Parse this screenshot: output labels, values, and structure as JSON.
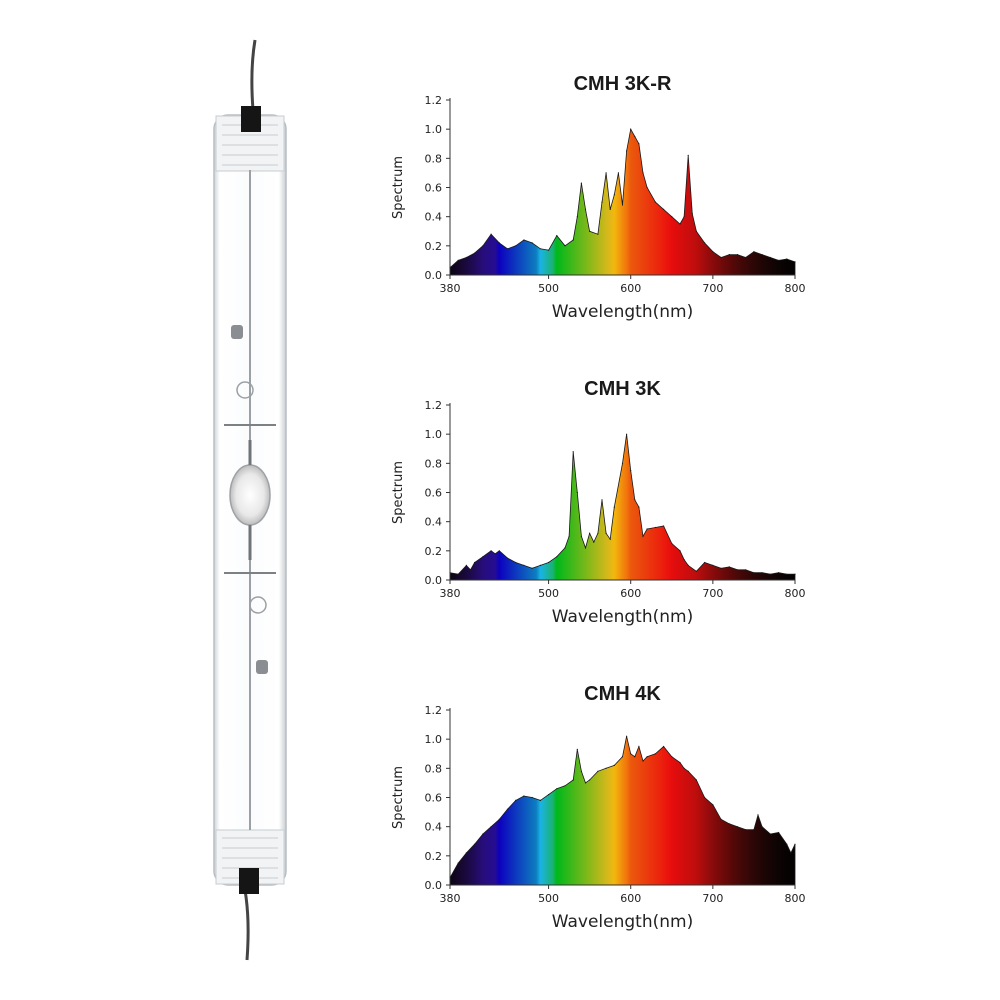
{
  "chart_data": [
    {
      "type": "area",
      "title": "CMH  3K-R",
      "xlabel": "Wavelength(nm)",
      "ylabel": "Spectrum",
      "xlim": [
        380,
        800
      ],
      "ylim": [
        0,
        1.2
      ],
      "xticks": [
        "380",
        "500",
        "600",
        "700",
        "800"
      ],
      "yticks": [
        "0.0",
        "0.2",
        "0.4",
        "0.6",
        "0.8",
        "1.0",
        "1.2"
      ],
      "x": [
        380,
        390,
        400,
        410,
        420,
        430,
        440,
        450,
        460,
        470,
        480,
        490,
        500,
        510,
        520,
        530,
        535,
        540,
        545,
        550,
        560,
        565,
        570,
        575,
        580,
        585,
        590,
        595,
        600,
        605,
        610,
        615,
        620,
        630,
        640,
        650,
        660,
        665,
        670,
        675,
        680,
        690,
        700,
        710,
        720,
        730,
        740,
        750,
        760,
        770,
        780,
        790,
        800
      ],
      "values": [
        0.05,
        0.1,
        0.12,
        0.15,
        0.2,
        0.28,
        0.22,
        0.18,
        0.2,
        0.24,
        0.22,
        0.18,
        0.17,
        0.27,
        0.2,
        0.24,
        0.4,
        0.63,
        0.45,
        0.3,
        0.28,
        0.5,
        0.7,
        0.45,
        0.55,
        0.7,
        0.48,
        0.85,
        1.0,
        0.95,
        0.9,
        0.7,
        0.6,
        0.5,
        0.45,
        0.4,
        0.35,
        0.4,
        0.82,
        0.42,
        0.3,
        0.22,
        0.16,
        0.12,
        0.14,
        0.14,
        0.12,
        0.16,
        0.14,
        0.12,
        0.1,
        0.11,
        0.09
      ]
    },
    {
      "type": "area",
      "title": "CMH  3K",
      "xlabel": "Wavelength(nm)",
      "ylabel": "Spectrum",
      "xlim": [
        380,
        800
      ],
      "ylim": [
        0,
        1.2
      ],
      "xticks": [
        "380",
        "500",
        "600",
        "700",
        "800"
      ],
      "yticks": [
        "0.0",
        "0.2",
        "0.4",
        "0.6",
        "0.8",
        "1.0",
        "1.2"
      ],
      "x": [
        380,
        390,
        400,
        405,
        410,
        420,
        430,
        435,
        440,
        450,
        460,
        470,
        480,
        490,
        500,
        510,
        520,
        525,
        530,
        535,
        540,
        545,
        550,
        555,
        560,
        565,
        570,
        575,
        580,
        590,
        595,
        600,
        605,
        610,
        615,
        620,
        630,
        640,
        650,
        660,
        665,
        670,
        680,
        690,
        700,
        710,
        720,
        730,
        740,
        750,
        760,
        770,
        780,
        790,
        800
      ],
      "values": [
        0.05,
        0.04,
        0.1,
        0.07,
        0.12,
        0.16,
        0.2,
        0.18,
        0.2,
        0.15,
        0.12,
        0.1,
        0.08,
        0.1,
        0.12,
        0.16,
        0.22,
        0.3,
        0.88,
        0.6,
        0.3,
        0.22,
        0.32,
        0.26,
        0.32,
        0.55,
        0.32,
        0.28,
        0.5,
        0.8,
        1.0,
        0.75,
        0.55,
        0.5,
        0.3,
        0.35,
        0.36,
        0.37,
        0.25,
        0.2,
        0.14,
        0.1,
        0.06,
        0.12,
        0.1,
        0.08,
        0.09,
        0.07,
        0.07,
        0.05,
        0.05,
        0.04,
        0.05,
        0.04,
        0.04
      ]
    },
    {
      "type": "area",
      "title": "CMH  4K",
      "xlabel": "Wavelength(nm)",
      "ylabel": "Spectrum",
      "xlim": [
        380,
        800
      ],
      "ylim": [
        0,
        1.2
      ],
      "xticks": [
        "380",
        "500",
        "600",
        "700",
        "800"
      ],
      "yticks": [
        "0.0",
        "0.2",
        "0.4",
        "0.6",
        "0.8",
        "1.0",
        "1.2"
      ],
      "x": [
        380,
        390,
        400,
        410,
        420,
        430,
        440,
        450,
        460,
        470,
        480,
        490,
        500,
        510,
        520,
        530,
        535,
        540,
        545,
        550,
        560,
        570,
        580,
        590,
        595,
        600,
        605,
        610,
        615,
        620,
        630,
        640,
        650,
        660,
        665,
        670,
        680,
        690,
        700,
        710,
        720,
        730,
        740,
        750,
        755,
        760,
        770,
        780,
        790,
        795,
        800
      ],
      "values": [
        0.05,
        0.15,
        0.22,
        0.28,
        0.35,
        0.4,
        0.45,
        0.52,
        0.58,
        0.61,
        0.6,
        0.58,
        0.62,
        0.66,
        0.68,
        0.72,
        0.93,
        0.78,
        0.7,
        0.72,
        0.78,
        0.8,
        0.82,
        0.88,
        1.02,
        0.9,
        0.88,
        0.95,
        0.85,
        0.88,
        0.9,
        0.95,
        0.88,
        0.84,
        0.8,
        0.78,
        0.72,
        0.6,
        0.55,
        0.45,
        0.42,
        0.4,
        0.38,
        0.38,
        0.48,
        0.4,
        0.35,
        0.36,
        0.28,
        0.22,
        0.28
      ]
    }
  ]
}
